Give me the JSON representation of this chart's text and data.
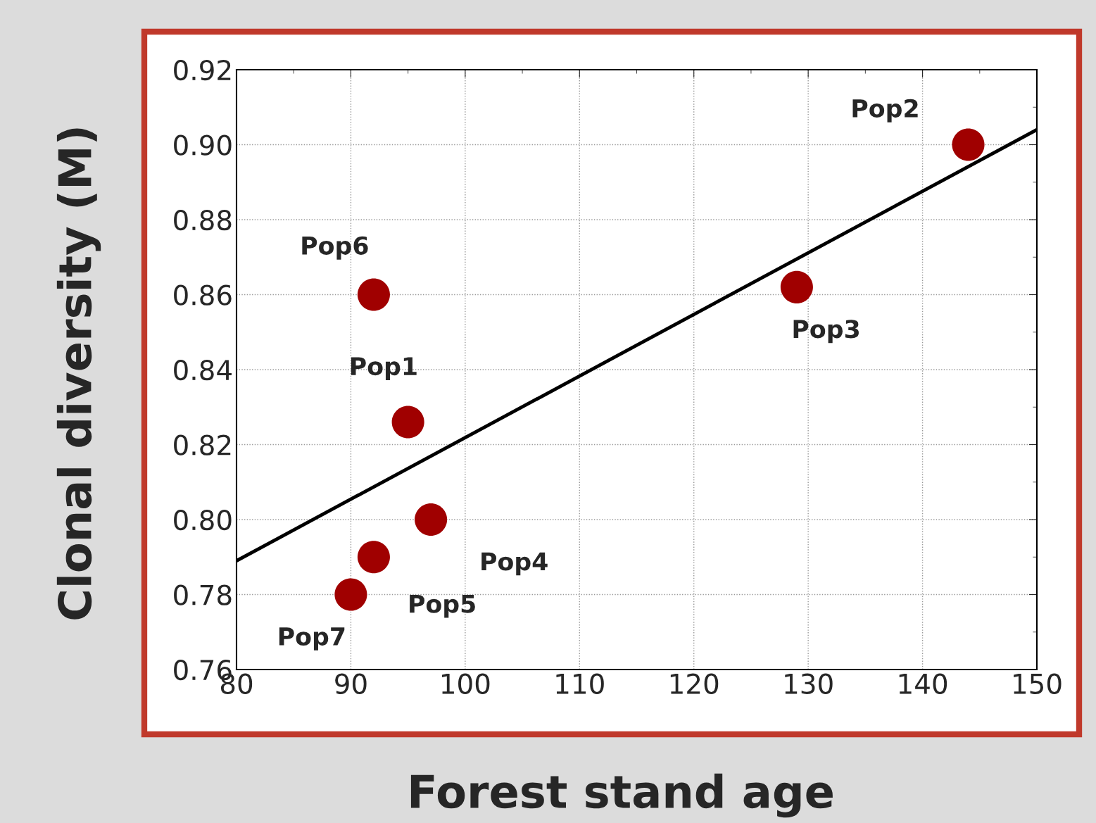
{
  "chart_data": {
    "type": "scatter",
    "xlabel": "Forest stand age",
    "ylabel": "Clonal diversity (M)",
    "series": [
      {
        "marker": "circle",
        "color": "#a00000",
        "x": [
          95,
          144,
          129,
          97,
          92,
          92,
          90
        ],
        "values": [
          0.826,
          0.9,
          0.862,
          0.8,
          0.79,
          0.86,
          0.78
        ]
      },
      {
        "type": "line",
        "marker": "none",
        "color": "#000000",
        "x": [
          80,
          150
        ],
        "values": [
          0.789,
          0.904
        ]
      }
    ],
    "annotations": [
      {
        "text": "Pop1",
        "x": 95,
        "y": 0.826
      },
      {
        "text": "Pop2",
        "x": 144,
        "y": 0.9
      },
      {
        "text": "Pop3",
        "x": 129,
        "y": 0.862
      },
      {
        "text": "Pop4",
        "x": 97,
        "y": 0.8
      },
      {
        "text": "Pop5",
        "x": 92,
        "y": 0.79
      },
      {
        "text": "Pop6",
        "x": 92,
        "y": 0.86
      },
      {
        "text": "Pop7",
        "x": 90,
        "y": 0.78
      }
    ],
    "xlim": [
      80,
      150
    ],
    "xticks": [
      80,
      90,
      100,
      110,
      120,
      130,
      140,
      150
    ],
    "ylim": [
      0.76,
      0.92
    ],
    "yticks": [
      {
        "value": 0.76,
        "label": "0.76"
      },
      {
        "value": 0.78,
        "label": "0.78"
      },
      {
        "value": 0.8,
        "label": "0.80"
      },
      {
        "value": 0.82,
        "label": "0.82"
      },
      {
        "value": 0.84,
        "label": "0.84"
      },
      {
        "value": 0.86,
        "label": "0.86"
      },
      {
        "value": 0.88,
        "label": "0.88"
      },
      {
        "value": 0.9,
        "label": "0.90"
      },
      {
        "value": 0.92,
        "label": "0.92"
      }
    ],
    "grid": true,
    "legend": false,
    "line_style": "solid"
  }
}
